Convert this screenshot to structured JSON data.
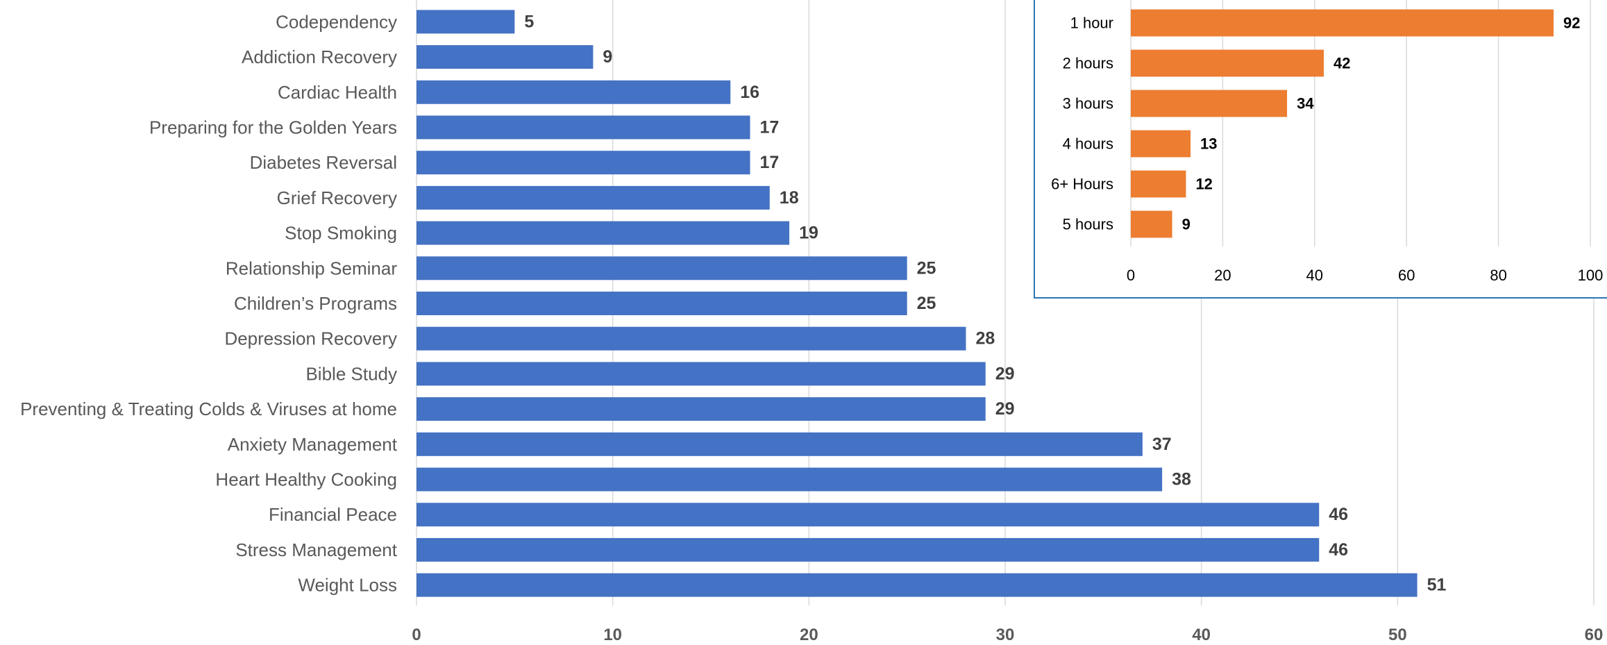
{
  "chart_data": [
    {
      "type": "bar",
      "orientation": "horizontal",
      "title": "",
      "xlabel": "",
      "ylabel": "",
      "xlim": [
        0,
        60
      ],
      "x_ticks": [
        0,
        10,
        20,
        30,
        40,
        50,
        60
      ],
      "grid": "vertical",
      "bar_color": "#4472C4",
      "categories": [
        "Codependency",
        "Addiction Recovery",
        "Cardiac Health",
        "Preparing for the Golden Years",
        "Diabetes Reversal",
        "Grief Recovery",
        "Stop Smoking",
        "Relationship Seminar",
        "Children’s Programs",
        "Depression Recovery",
        "Bible Study",
        "Preventing & Treating Colds & Viruses at home",
        "Anxiety Management",
        "Heart Healthy Cooking",
        "Financial Peace",
        "Stress Management",
        "Weight Loss"
      ],
      "values": [
        5,
        9,
        16,
        17,
        17,
        18,
        19,
        25,
        25,
        28,
        29,
        29,
        37,
        38,
        46,
        46,
        51
      ],
      "data_labels": true
    },
    {
      "type": "bar",
      "orientation": "horizontal",
      "title": "",
      "xlabel": "",
      "ylabel": "",
      "xlim": [
        0,
        100
      ],
      "x_ticks": [
        0,
        20,
        40,
        60,
        80,
        100
      ],
      "grid": "vertical",
      "bar_color": "#ED7D31",
      "frame_color": "#2E75B6",
      "categories": [
        "1 hour",
        "2 hours",
        "3 hours",
        "4 hours",
        "6+ Hours",
        "5 hours"
      ],
      "values": [
        92,
        42,
        34,
        13,
        12,
        9
      ],
      "data_labels": true
    }
  ]
}
